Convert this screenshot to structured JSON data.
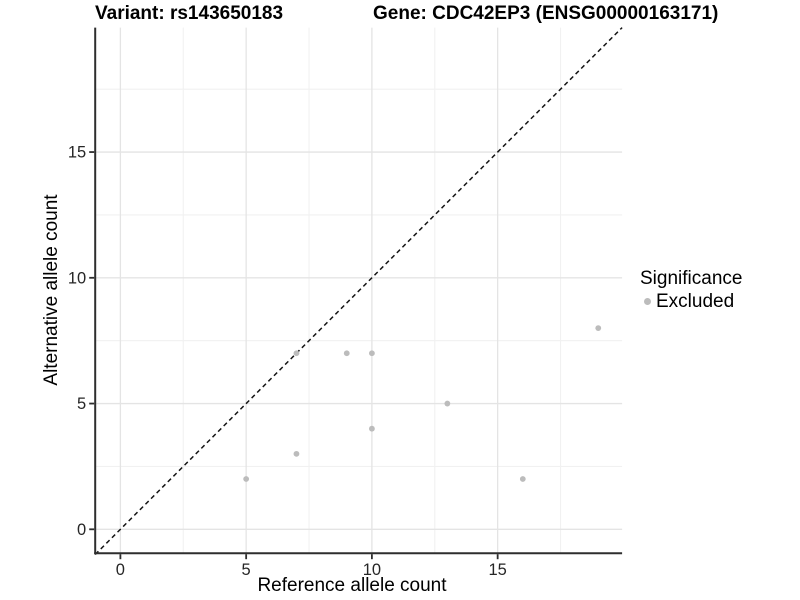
{
  "chart_data": {
    "type": "scatter",
    "titles": {
      "variant": "Variant: rs143650183",
      "gene": "Gene: CDC42EP3 (ENSG00000163171)"
    },
    "xlabel": "Reference allele count",
    "ylabel": "Alternative allele count",
    "xlim": [
      -1,
      20
    ],
    "ylim": [
      -1,
      20
    ],
    "x_ticks": [
      0,
      5,
      10,
      15
    ],
    "y_ticks": [
      0,
      5,
      10,
      15
    ],
    "x_minor_breaks": [
      2.5,
      7.5,
      12.5,
      17.5
    ],
    "y_minor_breaks": [
      2.5,
      7.5,
      12.5,
      17.5
    ],
    "grid": "major+minor",
    "identity_line": {
      "slope": 1,
      "intercept": 0,
      "style": "dashed",
      "color": "#141414"
    },
    "series": [
      {
        "name": "Excluded",
        "color": "#bcbcbc",
        "points": [
          {
            "x": 5,
            "y": 2
          },
          {
            "x": 7,
            "y": 3
          },
          {
            "x": 7,
            "y": 7
          },
          {
            "x": 9,
            "y": 7
          },
          {
            "x": 10,
            "y": 4
          },
          {
            "x": 10,
            "y": 7
          },
          {
            "x": 13,
            "y": 5
          },
          {
            "x": 16,
            "y": 2
          },
          {
            "x": 19,
            "y": 8
          }
        ]
      }
    ],
    "legend": {
      "position": "right",
      "title": "Significance",
      "items": [
        {
          "label": "Excluded",
          "color": "#bcbcbc",
          "marker": "circle"
        }
      ]
    }
  },
  "colors": {
    "background": "#ffffff",
    "grid_major": "#e4e4e4",
    "grid_minor": "#f1f1f1",
    "axis_line": "#2e2e2e",
    "tick_text": "#262626",
    "point": "#bcbcbc",
    "dashed_line": "#141414"
  }
}
